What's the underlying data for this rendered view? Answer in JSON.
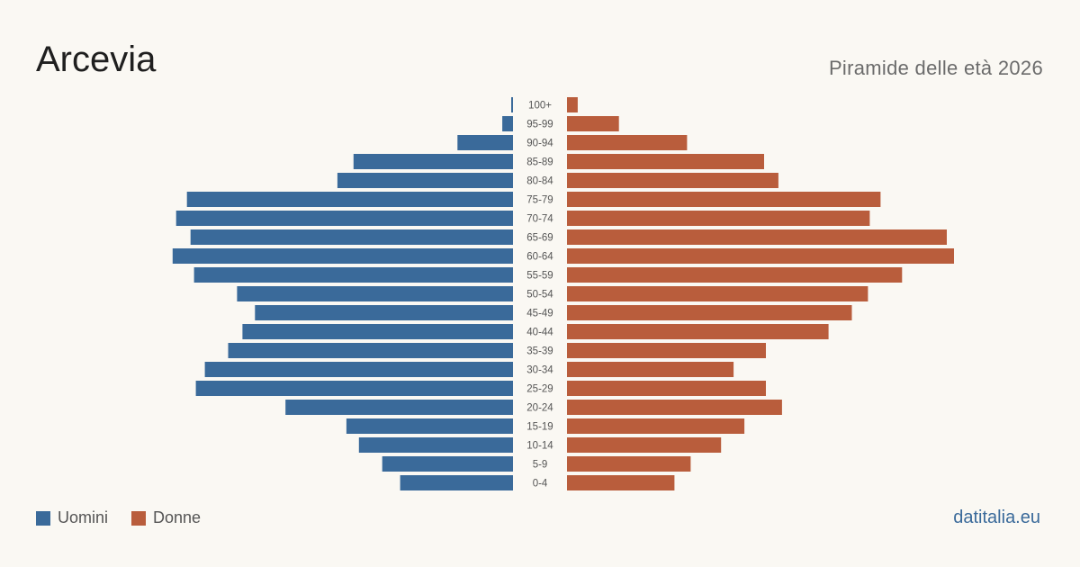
{
  "header": {
    "title": "Arcevia",
    "subtitle": "Piramide delle età 2026"
  },
  "legend": {
    "men": "Uomini",
    "women": "Donne"
  },
  "footer": {
    "brand": "datitalia.eu"
  },
  "colors": {
    "men": "#3a6a9a",
    "women": "#b95d3c",
    "background": "#faf8f3"
  },
  "chart_data": {
    "type": "bar",
    "orientation": "horizontal-pyramid",
    "categories": [
      "100+",
      "95-99",
      "90-94",
      "85-89",
      "80-84",
      "75-79",
      "70-74",
      "65-69",
      "60-64",
      "55-59",
      "50-54",
      "45-49",
      "40-44",
      "35-39",
      "30-34",
      "25-29",
      "20-24",
      "15-19",
      "10-14",
      "5-9",
      "0-4"
    ],
    "series": [
      {
        "name": "Uomini",
        "values": [
          1,
          6,
          31,
          89,
          98,
          182,
          188,
          180,
          190,
          178,
          154,
          144,
          151,
          159,
          172,
          177,
          127,
          93,
          86,
          73,
          63
        ]
      },
      {
        "name": "Donne",
        "values": [
          6,
          29,
          67,
          110,
          118,
          175,
          169,
          212,
          216,
          187,
          168,
          159,
          146,
          111,
          93,
          111,
          120,
          99,
          86,
          69,
          60
        ]
      }
    ],
    "xlim": [
      0,
      216
    ],
    "grid": false,
    "legend_position": "bottom-left"
  }
}
